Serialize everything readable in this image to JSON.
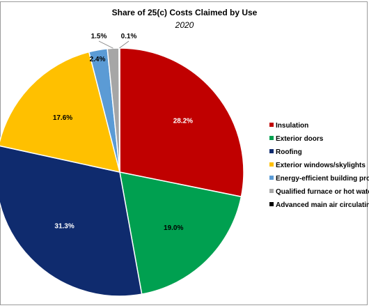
{
  "chart_data": {
    "type": "pie",
    "title": "Share of 25(c) Costs Claimed by Use",
    "subtitle": "2020",
    "legend_position": "right",
    "categories": [
      "Insulation",
      "Exterior doors",
      "Roofing",
      "Exterior windows/skylights",
      "Energy-efficient building pro",
      "Qualified furnace or hot wate",
      "Advanced main air circulatin"
    ],
    "values": [
      28.2,
      19.0,
      31.3,
      17.6,
      2.4,
      1.5,
      0.1
    ],
    "data_labels": [
      "28.2%",
      "19.0%",
      "31.3%",
      "17.6%",
      "2.4%",
      "1.5%",
      "0.1%"
    ],
    "colors": [
      "#C00000",
      "#00A050",
      "#0F2B6E",
      "#FFC000",
      "#5B9BD5",
      "#A6A6A6",
      "#000000"
    ],
    "label_colors": [
      "#ffffff",
      "#000000",
      "#ffffff",
      "#000000",
      "#000000",
      "#000000",
      "#000000"
    ]
  }
}
